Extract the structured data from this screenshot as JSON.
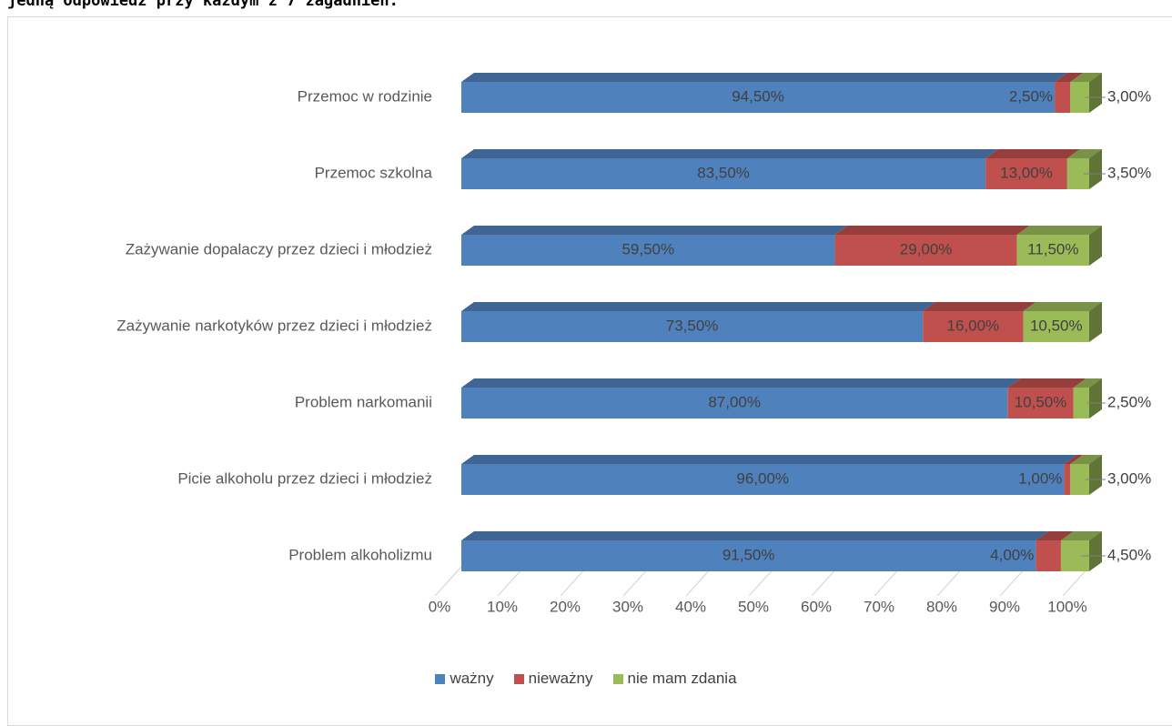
{
  "caption": "jedną odpowiedź przy każdym z 7 zagadnień.",
  "chart_data": {
    "type": "bar",
    "orientation": "horizontal",
    "stacked": true,
    "style": "3d",
    "categories": [
      "Przemoc w rodzinie",
      "Przemoc szkolna",
      "Zażywanie dopalaczy przez dzieci i młodzież",
      "Zażywanie narkotyków przez dzieci i młodzież",
      "Problem narkomanii",
      "Picie alkoholu przez dzieci i młodzież",
      "Problem alkoholizmu"
    ],
    "series": [
      {
        "name": "ważny",
        "color": "#4f81bd",
        "values": [
          94.5,
          83.5,
          59.5,
          73.5,
          87.0,
          96.0,
          91.5
        ],
        "labels": [
          "94,50%",
          "83,50%",
          "59,50%",
          "73,50%",
          "87,00%",
          "96,00%",
          "91,50%"
        ]
      },
      {
        "name": "nieważny",
        "color": "#c0504d",
        "values": [
          2.5,
          13.0,
          29.0,
          16.0,
          10.5,
          1.0,
          4.0
        ],
        "labels": [
          "2,50%",
          "13,00%",
          "29,00%",
          "16,00%",
          "10,50%",
          "1,00%",
          "4,00%"
        ]
      },
      {
        "name": "nie mam zdania",
        "color": "#9bbb59",
        "values": [
          3.0,
          3.5,
          11.5,
          10.5,
          2.5,
          3.0,
          4.5
        ],
        "labels": [
          "3,00%",
          "3,50%",
          "11,50%",
          "10,50%",
          "2,50%",
          "3,00%",
          "4,50%"
        ]
      }
    ],
    "xlim": [
      0,
      100
    ],
    "x_ticks": [
      "0%",
      "10%",
      "20%",
      "30%",
      "40%",
      "50%",
      "60%",
      "70%",
      "80%",
      "90%",
      "100%"
    ],
    "grid": true,
    "legend": "bottom"
  }
}
